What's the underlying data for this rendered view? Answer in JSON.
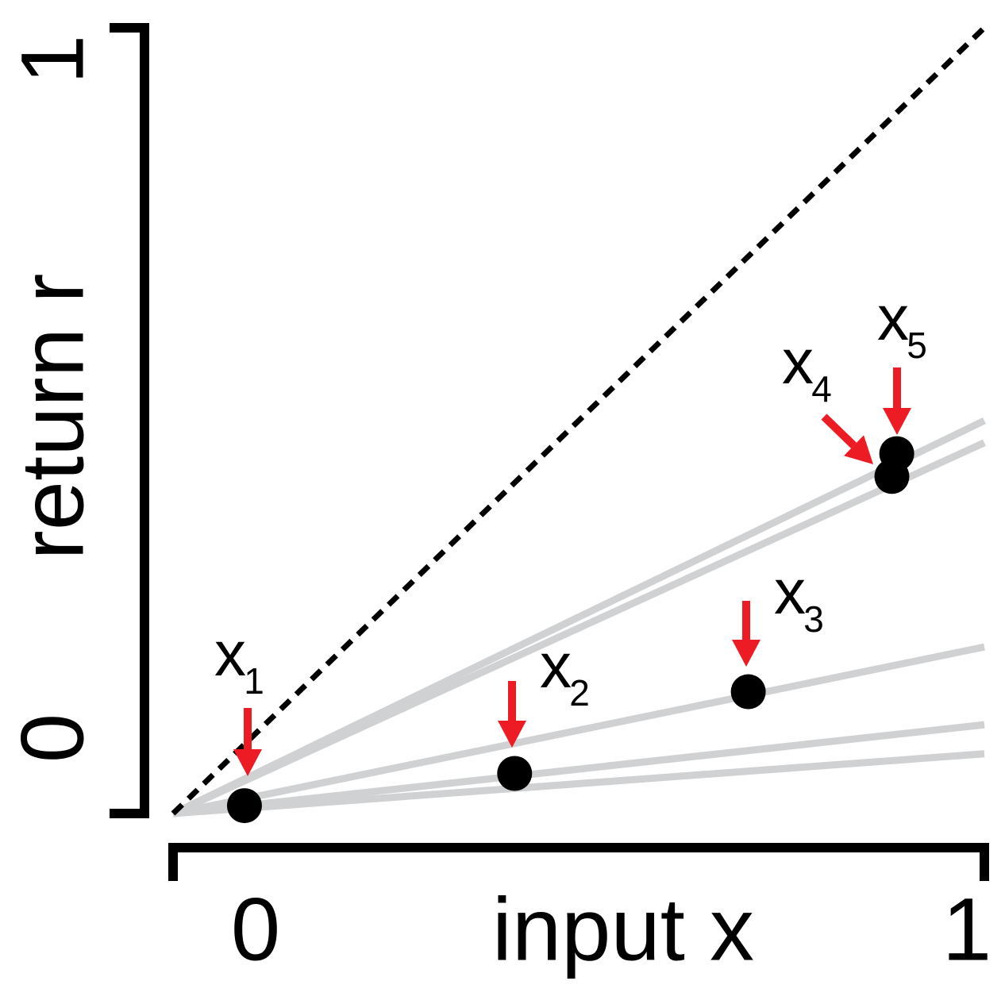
{
  "chart_data": {
    "type": "scatter",
    "xlabel": "input x",
    "ylabel": "return r",
    "xlim": [
      0,
      1
    ],
    "ylim": [
      0,
      1
    ],
    "xticks": [
      0,
      1
    ],
    "yticks": [
      0,
      1
    ],
    "color": "#000000",
    "arrow_color": "#ed1c24",
    "x": [
      0.088,
      0.421,
      0.709,
      0.886,
      0.892
    ],
    "values": [
      0.01,
      0.051,
      0.155,
      0.429,
      0.458
    ],
    "point_labels": [
      {
        "text": "x",
        "sub": "1"
      },
      {
        "text": "x",
        "sub": "2"
      },
      {
        "text": "x",
        "sub": "3"
      },
      {
        "text": "x",
        "sub": "4"
      },
      {
        "text": "x",
        "sub": "5"
      }
    ],
    "line_color": "#d0d1d2",
    "lines": [
      {
        "x": [
          0,
          1
        ],
        "values": [
          0,
          0.5
        ]
      },
      {
        "x": [
          0,
          1
        ],
        "values": [
          0,
          0.472
        ]
      },
      {
        "x": [
          0,
          1
        ],
        "values": [
          0,
          0.212
        ]
      },
      {
        "x": [
          0,
          1
        ],
        "values": [
          0,
          0.113
        ]
      },
      {
        "x": [
          0,
          1
        ],
        "values": [
          0,
          0.076
        ]
      }
    ],
    "reference": {
      "x": [
        0,
        1
      ],
      "values": [
        0,
        1
      ],
      "color": "#000000",
      "dashed": true
    }
  }
}
